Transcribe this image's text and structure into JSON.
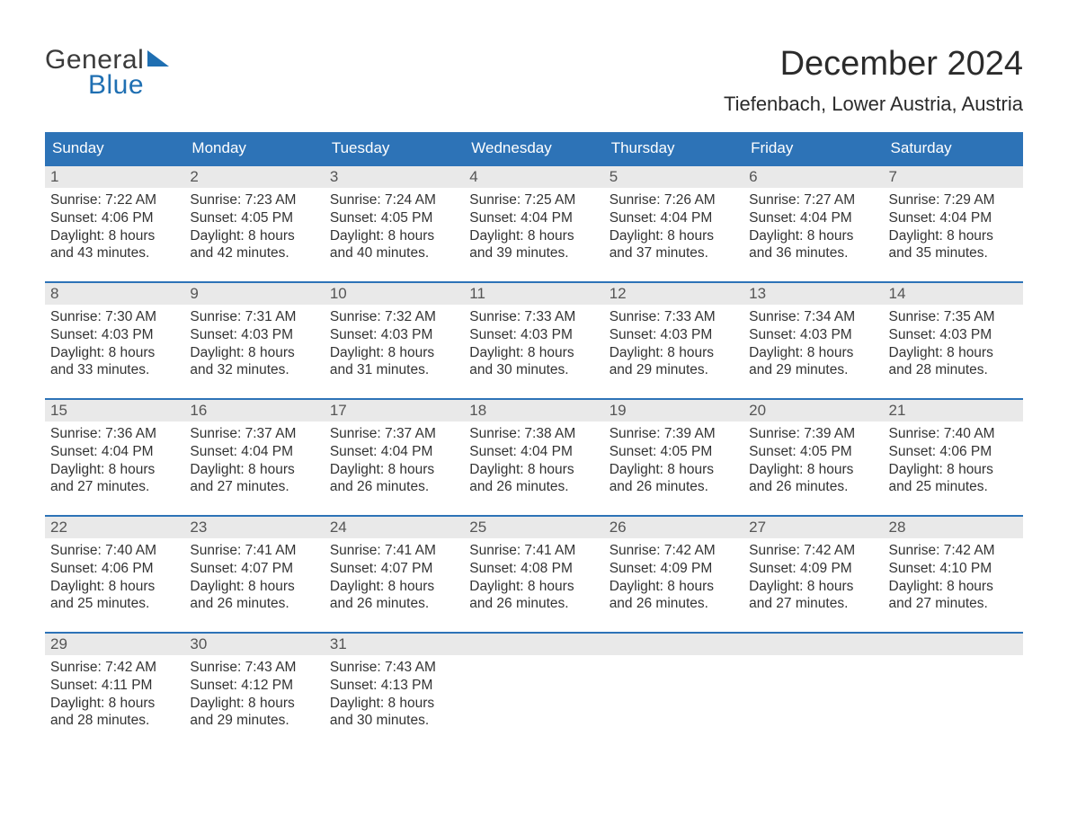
{
  "logo": {
    "text1": "General",
    "text2": "Blue"
  },
  "title": "December 2024",
  "location": "Tiefenbach, Lower Austria, Austria",
  "colors": {
    "header_bg": "#2d73b7",
    "header_text": "#ffffff",
    "daynum_bg": "#e9e9e9",
    "week_border": "#2d73b7",
    "logo_blue": "#1f6fb2",
    "body_text": "#333333"
  },
  "fonts": {
    "title_size_pt": 29,
    "location_size_pt": 17,
    "dow_size_pt": 13,
    "body_size_pt": 12
  },
  "days_of_week": [
    "Sunday",
    "Monday",
    "Tuesday",
    "Wednesday",
    "Thursday",
    "Friday",
    "Saturday"
  ],
  "weeks": [
    [
      {
        "n": "1",
        "sunrise": "Sunrise: 7:22 AM",
        "sunset": "Sunset: 4:06 PM",
        "d1": "Daylight: 8 hours",
        "d2": "and 43 minutes."
      },
      {
        "n": "2",
        "sunrise": "Sunrise: 7:23 AM",
        "sunset": "Sunset: 4:05 PM",
        "d1": "Daylight: 8 hours",
        "d2": "and 42 minutes."
      },
      {
        "n": "3",
        "sunrise": "Sunrise: 7:24 AM",
        "sunset": "Sunset: 4:05 PM",
        "d1": "Daylight: 8 hours",
        "d2": "and 40 minutes."
      },
      {
        "n": "4",
        "sunrise": "Sunrise: 7:25 AM",
        "sunset": "Sunset: 4:04 PM",
        "d1": "Daylight: 8 hours",
        "d2": "and 39 minutes."
      },
      {
        "n": "5",
        "sunrise": "Sunrise: 7:26 AM",
        "sunset": "Sunset: 4:04 PM",
        "d1": "Daylight: 8 hours",
        "d2": "and 37 minutes."
      },
      {
        "n": "6",
        "sunrise": "Sunrise: 7:27 AM",
        "sunset": "Sunset: 4:04 PM",
        "d1": "Daylight: 8 hours",
        "d2": "and 36 minutes."
      },
      {
        "n": "7",
        "sunrise": "Sunrise: 7:29 AM",
        "sunset": "Sunset: 4:04 PM",
        "d1": "Daylight: 8 hours",
        "d2": "and 35 minutes."
      }
    ],
    [
      {
        "n": "8",
        "sunrise": "Sunrise: 7:30 AM",
        "sunset": "Sunset: 4:03 PM",
        "d1": "Daylight: 8 hours",
        "d2": "and 33 minutes."
      },
      {
        "n": "9",
        "sunrise": "Sunrise: 7:31 AM",
        "sunset": "Sunset: 4:03 PM",
        "d1": "Daylight: 8 hours",
        "d2": "and 32 minutes."
      },
      {
        "n": "10",
        "sunrise": "Sunrise: 7:32 AM",
        "sunset": "Sunset: 4:03 PM",
        "d1": "Daylight: 8 hours",
        "d2": "and 31 minutes."
      },
      {
        "n": "11",
        "sunrise": "Sunrise: 7:33 AM",
        "sunset": "Sunset: 4:03 PM",
        "d1": "Daylight: 8 hours",
        "d2": "and 30 minutes."
      },
      {
        "n": "12",
        "sunrise": "Sunrise: 7:33 AM",
        "sunset": "Sunset: 4:03 PM",
        "d1": "Daylight: 8 hours",
        "d2": "and 29 minutes."
      },
      {
        "n": "13",
        "sunrise": "Sunrise: 7:34 AM",
        "sunset": "Sunset: 4:03 PM",
        "d1": "Daylight: 8 hours",
        "d2": "and 29 minutes."
      },
      {
        "n": "14",
        "sunrise": "Sunrise: 7:35 AM",
        "sunset": "Sunset: 4:03 PM",
        "d1": "Daylight: 8 hours",
        "d2": "and 28 minutes."
      }
    ],
    [
      {
        "n": "15",
        "sunrise": "Sunrise: 7:36 AM",
        "sunset": "Sunset: 4:04 PM",
        "d1": "Daylight: 8 hours",
        "d2": "and 27 minutes."
      },
      {
        "n": "16",
        "sunrise": "Sunrise: 7:37 AM",
        "sunset": "Sunset: 4:04 PM",
        "d1": "Daylight: 8 hours",
        "d2": "and 27 minutes."
      },
      {
        "n": "17",
        "sunrise": "Sunrise: 7:37 AM",
        "sunset": "Sunset: 4:04 PM",
        "d1": "Daylight: 8 hours",
        "d2": "and 26 minutes."
      },
      {
        "n": "18",
        "sunrise": "Sunrise: 7:38 AM",
        "sunset": "Sunset: 4:04 PM",
        "d1": "Daylight: 8 hours",
        "d2": "and 26 minutes."
      },
      {
        "n": "19",
        "sunrise": "Sunrise: 7:39 AM",
        "sunset": "Sunset: 4:05 PM",
        "d1": "Daylight: 8 hours",
        "d2": "and 26 minutes."
      },
      {
        "n": "20",
        "sunrise": "Sunrise: 7:39 AM",
        "sunset": "Sunset: 4:05 PM",
        "d1": "Daylight: 8 hours",
        "d2": "and 26 minutes."
      },
      {
        "n": "21",
        "sunrise": "Sunrise: 7:40 AM",
        "sunset": "Sunset: 4:06 PM",
        "d1": "Daylight: 8 hours",
        "d2": "and 25 minutes."
      }
    ],
    [
      {
        "n": "22",
        "sunrise": "Sunrise: 7:40 AM",
        "sunset": "Sunset: 4:06 PM",
        "d1": "Daylight: 8 hours",
        "d2": "and 25 minutes."
      },
      {
        "n": "23",
        "sunrise": "Sunrise: 7:41 AM",
        "sunset": "Sunset: 4:07 PM",
        "d1": "Daylight: 8 hours",
        "d2": "and 26 minutes."
      },
      {
        "n": "24",
        "sunrise": "Sunrise: 7:41 AM",
        "sunset": "Sunset: 4:07 PM",
        "d1": "Daylight: 8 hours",
        "d2": "and 26 minutes."
      },
      {
        "n": "25",
        "sunrise": "Sunrise: 7:41 AM",
        "sunset": "Sunset: 4:08 PM",
        "d1": "Daylight: 8 hours",
        "d2": "and 26 minutes."
      },
      {
        "n": "26",
        "sunrise": "Sunrise: 7:42 AM",
        "sunset": "Sunset: 4:09 PM",
        "d1": "Daylight: 8 hours",
        "d2": "and 26 minutes."
      },
      {
        "n": "27",
        "sunrise": "Sunrise: 7:42 AM",
        "sunset": "Sunset: 4:09 PM",
        "d1": "Daylight: 8 hours",
        "d2": "and 27 minutes."
      },
      {
        "n": "28",
        "sunrise": "Sunrise: 7:42 AM",
        "sunset": "Sunset: 4:10 PM",
        "d1": "Daylight: 8 hours",
        "d2": "and 27 minutes."
      }
    ],
    [
      {
        "n": "29",
        "sunrise": "Sunrise: 7:42 AM",
        "sunset": "Sunset: 4:11 PM",
        "d1": "Daylight: 8 hours",
        "d2": "and 28 minutes."
      },
      {
        "n": "30",
        "sunrise": "Sunrise: 7:43 AM",
        "sunset": "Sunset: 4:12 PM",
        "d1": "Daylight: 8 hours",
        "d2": "and 29 minutes."
      },
      {
        "n": "31",
        "sunrise": "Sunrise: 7:43 AM",
        "sunset": "Sunset: 4:13 PM",
        "d1": "Daylight: 8 hours",
        "d2": "and 30 minutes."
      },
      {
        "empty": true
      },
      {
        "empty": true
      },
      {
        "empty": true
      },
      {
        "empty": true
      }
    ]
  ]
}
